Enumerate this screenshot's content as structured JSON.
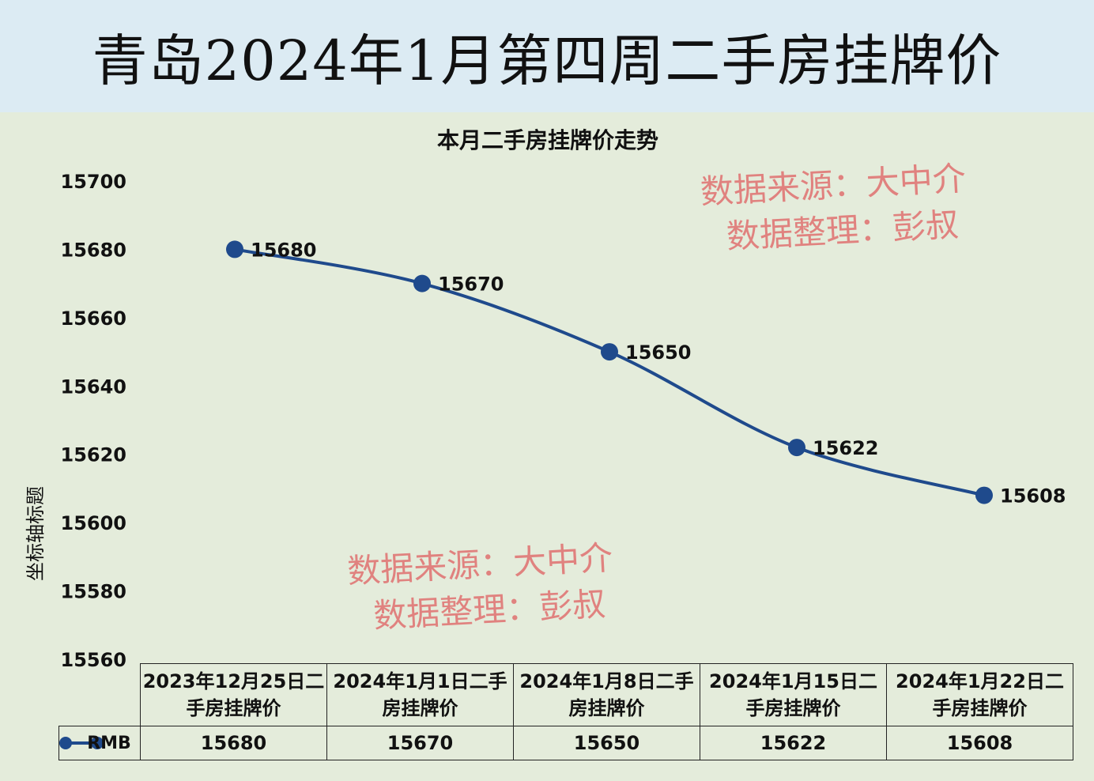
{
  "header": {
    "title": "青岛2024年1月第四周二手房挂牌价"
  },
  "watermarks": [
    {
      "line1": "数据来源：大中介",
      "line2": "数据整理：彭叔"
    },
    {
      "line1": "数据来源：大中介",
      "line2": "数据整理：彭叔"
    }
  ],
  "colors": {
    "series": "#1f4a8c",
    "header_bg": "#dcebf3",
    "chart_bg": "#e4ecdb",
    "watermark": "#e07070"
  },
  "chart_data": {
    "type": "line",
    "title": "本月二手房挂牌价走势",
    "ylabel": "坐标轴标题",
    "xlabel": "",
    "ylim": [
      15560,
      15700
    ],
    "ytick_step": 20,
    "yticks": [
      "15560",
      "15580",
      "15600",
      "15620",
      "15640",
      "15660",
      "15680",
      "15700"
    ],
    "categories": [
      [
        "2023年12月25日二",
        "手房挂牌价"
      ],
      [
        "2024年1月1日二手",
        "房挂牌价"
      ],
      [
        "2024年1月8日二手",
        "房挂牌价"
      ],
      [
        "2024年1月15日二",
        "手房挂牌价"
      ],
      [
        "2024年1月22日二",
        "手房挂牌价"
      ]
    ],
    "series": [
      {
        "name": "RMB",
        "values": [
          15680,
          15670,
          15650,
          15622,
          15608
        ]
      }
    ],
    "data_labels": [
      "15680",
      "15670",
      "15650",
      "15622",
      "15608"
    ],
    "data_table": true,
    "grid": false
  }
}
